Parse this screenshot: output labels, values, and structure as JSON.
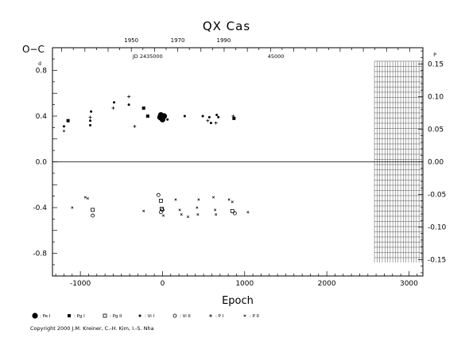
{
  "chart_data": {
    "type": "scatter",
    "title": "QX Cas",
    "xlabel": "Epoch",
    "ylabel_left": "O−C",
    "ylabel_left_unit": "d",
    "ylabel_right_unit": "P",
    "xlim": [
      -1340,
      3170
    ],
    "ylim_left": [
      -0.998,
      0.998
    ],
    "ylim_right": [
      -0.175,
      0.175
    ],
    "x_ticks": [
      -1000,
      0,
      1000,
      2000,
      3000
    ],
    "y_ticks_left": [
      0.8,
      0.4,
      0.0,
      -0.4,
      -0.8
    ],
    "y_tick_labels_left": [
      "0.8",
      "0.4",
      "0.0",
      "-0.4",
      "-0.8"
    ],
    "y_ticks_right": [
      0.15,
      0.1,
      0.05,
      0.0,
      -0.05,
      -0.1,
      -0.15
    ],
    "y_tick_labels_right": [
      "0.15",
      "0.10",
      "0.05",
      "0.00",
      "-0.05",
      "-0.10",
      "-0.15"
    ],
    "year_ticks": [
      1950,
      1970,
      1990
    ],
    "year_tick_labels": [
      "1950",
      "1970",
      "1990"
    ],
    "year_tick_epochs": [
      -380,
      185,
      745
    ],
    "jd_labels": [
      {
        "text": "JD 2435000",
        "epoch": -180
      },
      {
        "text": "45000",
        "epoch": 1380
      }
    ],
    "zero_line": 0.0,
    "hatched_region": {
      "x_from": 2580,
      "x_to": 3160,
      "y_from": -0.88,
      "y_to": 0.88
    },
    "legend": [
      {
        "marker": "big-dot",
        "label": ": Pe I"
      },
      {
        "marker": "square",
        "label": ": Pg I"
      },
      {
        "marker": "open-square",
        "label": ": Pg II"
      },
      {
        "marker": "dot",
        "label": ": Vi I"
      },
      {
        "marker": "open-circle",
        "label": ": Vi II"
      },
      {
        "marker": "plus",
        "label": ": P I"
      },
      {
        "marker": "cross",
        "label": ": P II"
      }
    ],
    "series": [
      {
        "marker": "big-dot",
        "points": [
          [
            -30,
            0.39
          ],
          [
            -10,
            0.38
          ],
          [
            20,
            0.4
          ],
          [
            -20,
            0.41
          ],
          [
            0,
            0.37
          ]
        ]
      },
      {
        "marker": "square",
        "points": [
          [
            -1150,
            0.36
          ],
          [
            -230,
            0.47
          ],
          [
            -180,
            0.4
          ],
          [
            870,
            0.38
          ]
        ]
      },
      {
        "marker": "open-square",
        "points": [
          [
            -850,
            -0.42
          ],
          [
            -20,
            -0.34
          ],
          [
            -10,
            -0.41
          ],
          [
            850,
            -0.43
          ]
        ]
      },
      {
        "marker": "dot",
        "points": [
          [
            -1200,
            0.31
          ],
          [
            -870,
            0.44
          ],
          [
            -880,
            0.36
          ],
          [
            -880,
            0.32
          ],
          [
            -590,
            0.52
          ],
          [
            -410,
            0.5
          ],
          [
            40,
            0.4
          ],
          [
            60,
            0.37
          ],
          [
            270,
            0.4
          ],
          [
            490,
            0.4
          ],
          [
            660,
            0.41
          ],
          [
            680,
            0.39
          ],
          [
            570,
            0.39
          ],
          [
            590,
            0.34
          ]
        ]
      },
      {
        "marker": "open-circle",
        "points": [
          [
            -850,
            -0.47
          ],
          [
            -50,
            -0.29
          ],
          [
            -20,
            -0.44
          ],
          [
            0,
            -0.42
          ],
          [
            880,
            -0.45
          ]
        ]
      },
      {
        "marker": "plus",
        "points": [
          [
            -600,
            0.47
          ],
          [
            -410,
            0.57
          ],
          [
            -340,
            0.31
          ],
          [
            -880,
            0.39
          ],
          [
            550,
            0.36
          ],
          [
            650,
            0.34
          ],
          [
            860,
            0.4
          ]
        ]
      },
      {
        "marker": "cross",
        "points": [
          [
            -1200,
            0.27
          ],
          [
            -1100,
            -0.4
          ],
          [
            -940,
            -0.31
          ],
          [
            -910,
            -0.32
          ],
          [
            -230,
            -0.43
          ],
          [
            10,
            -0.47
          ],
          [
            160,
            -0.33
          ],
          [
            210,
            -0.42
          ],
          [
            230,
            -0.46
          ],
          [
            310,
            -0.48
          ],
          [
            420,
            -0.4
          ],
          [
            430,
            -0.46
          ],
          [
            440,
            -0.33
          ],
          [
            620,
            -0.31
          ],
          [
            640,
            -0.42
          ],
          [
            650,
            -0.46
          ],
          [
            810,
            -0.33
          ],
          [
            850,
            -0.35
          ],
          [
            1040,
            -0.44
          ]
        ]
      }
    ]
  },
  "footer": {
    "copyright": "Copyright 2000 J.M. Kreiner, C.-H. Kim, I.-S. Nha"
  }
}
